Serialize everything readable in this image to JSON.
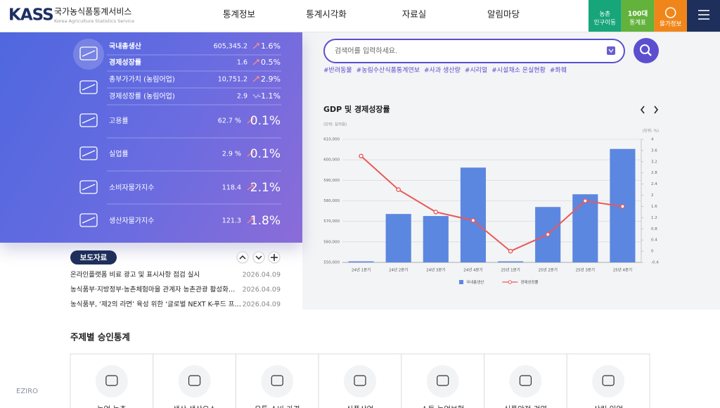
{
  "header": {
    "logo": "KASS",
    "site_name": "국가농식품통계서비스",
    "site_name_en": "Korea Agriculture Statistics Service",
    "nav": [
      "통계정보",
      "통계시각화",
      "자료실",
      "알림마당"
    ],
    "quick_links": [
      {
        "lines": [
          "농촌",
          "인구이동"
        ],
        "color": "#17a57a"
      },
      {
        "lines": [
          "100대",
          "통계표"
        ],
        "color": "#62b23c"
      },
      {
        "lines": [
          "물가정보"
        ],
        "color": "#f0861a"
      }
    ]
  },
  "indicators": [
    {
      "name": "국내총생산",
      "value": "605,345.2",
      "change": "1.6%",
      "direction": "up"
    },
    {
      "name": "경제성장률",
      "value": "1.6",
      "change": "0.5%",
      "direction": "up"
    },
    {
      "name": "총부가가치 (농림어업)",
      "value": "10,751.2",
      "change": "2.9%",
      "direction": "up"
    },
    {
      "name": "경제성장률 (농림어업)",
      "value": "2.9",
      "change": "-1.1%",
      "direction": "down"
    },
    {
      "name": "고용률",
      "value": "62.7 %",
      "change": "0.1%",
      "direction": "up"
    },
    {
      "name": "실업률",
      "value": "2.9 %",
      "change": "0.1%",
      "direction": "up"
    },
    {
      "name": "소비자물가지수",
      "value": "118.4",
      "change": "2.1%",
      "direction": "up"
    },
    {
      "name": "생산자물가지수",
      "value": "121.3",
      "change": "1.8%",
      "direction": "up"
    }
  ],
  "search": {
    "placeholder": "검색어를 입력하세요.",
    "tags": [
      "#반려동물",
      "#농림수산식품통계연보",
      "#사과 생산량",
      "#시리얼",
      "#시설채소 온실현황",
      "#화훼"
    ]
  },
  "chart_data": {
    "type": "combo",
    "title": "GDP 및 경제성장률",
    "y_label": "(단위: 십억원)",
    "y2_label": "(단위: %)",
    "categories": [
      "24년 1분기",
      "24년 2분기",
      "24년 3분기",
      "24년 4분기",
      "25년 1분기",
      "25년 2분기",
      "25년 3분기",
      "25년 4분기"
    ],
    "series": [
      {
        "name": "국내총생산",
        "kind": "bar",
        "color": "#5b87e0",
        "values": [
          550500,
          573600,
          572600,
          596200,
          550500,
          577000,
          583200,
          605300
        ]
      },
      {
        "name": "경제성장률",
        "kind": "line",
        "axis": "y2",
        "color": "#e85a5a",
        "values": [
          3.4,
          2.2,
          1.4,
          1.1,
          0.0,
          0.6,
          1.8,
          1.6
        ]
      }
    ],
    "ylim": [
      550000,
      610000
    ],
    "yticks": [
      {
        "value": 550000,
        "label": "550,000"
      },
      {
        "value": 560000,
        "label": "560,000"
      },
      {
        "value": 570000,
        "label": "570,000"
      },
      {
        "value": 580000,
        "label": "580,000"
      },
      {
        "value": 590000,
        "label": "590,000"
      },
      {
        "value": 600000,
        "label": "600,000"
      },
      {
        "value": 610000,
        "label": "610,000"
      }
    ],
    "y2lim": [
      -0.4,
      4
    ],
    "y2ticks": [
      -0.4,
      0,
      0.4,
      0.8,
      1.2,
      1.6,
      2,
      2.4,
      2.8,
      3.2,
      3.6,
      4
    ],
    "grid": true
  },
  "press": {
    "title": "보도자료",
    "items": [
      {
        "title": "온라인플랫폼 비료 광고 및 표시사항 점검 실시",
        "date": "2026.04.09"
      },
      {
        "title": "농식품부·지방정부·농촌체험마을 관계자 농촌관광 활성화…",
        "date": "2026.04.09"
      },
      {
        "title": "농식품부, ‘제2의 라면’ 육성 위한 ‘글로벌 NEXT K-푸드 프…",
        "date": "2026.04.09"
      }
    ]
  },
  "topics": {
    "title": "주제별 승인통계",
    "items": [
      "농업·농촌",
      "생산·생산요소",
      "유통·소비·가격",
      "식품산업",
      "소득·농업보험",
      "식품안전·검역",
      "산림·임업"
    ]
  },
  "watermark": "EZIRO"
}
